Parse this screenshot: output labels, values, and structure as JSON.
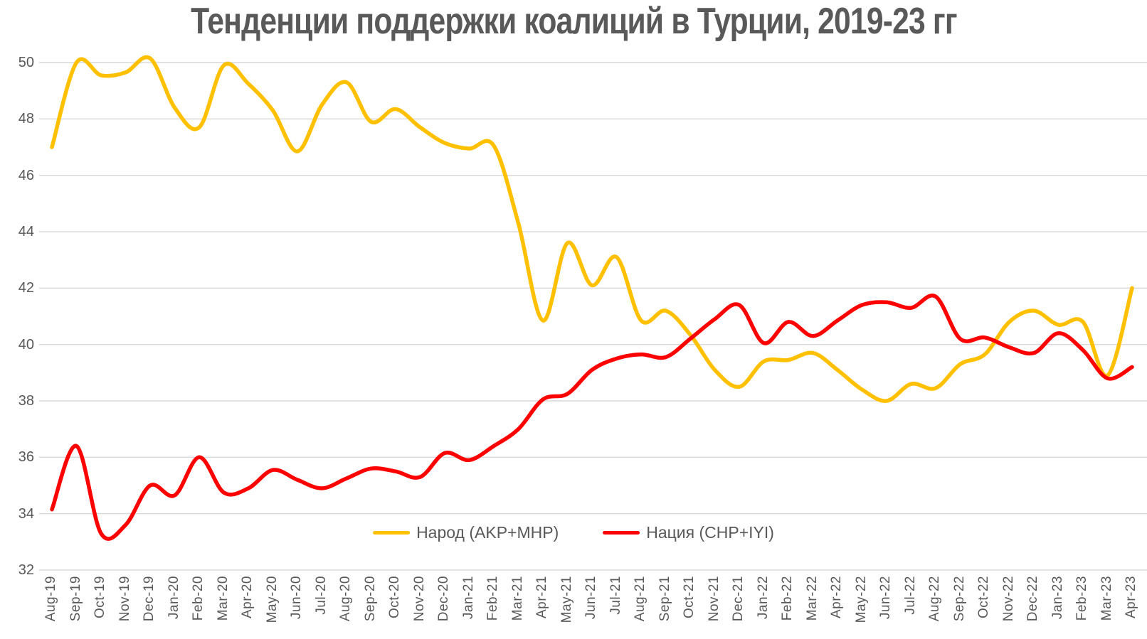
{
  "chart_data": {
    "type": "line",
    "title": "Тенденции поддержки коалиций в Турции, 2019-23 гг",
    "xlabel": "",
    "ylabel": "",
    "ylim": [
      32,
      50
    ],
    "y_tick_step": 2,
    "grid": "horizontal",
    "legend_position": "bottom-center",
    "smoothed_lines": true,
    "y_ticks": [
      "50",
      "48",
      "46",
      "44",
      "42",
      "40",
      "38",
      "36",
      "34",
      "32"
    ],
    "categories": [
      "Aug-19",
      "Sep-19",
      "Oct-19",
      "Nov-19",
      "Dec-19",
      "Jan-20",
      "Feb-20",
      "Mar-20",
      "Apr-20",
      "May-20",
      "Jun-20",
      "Jul-20",
      "Aug-20",
      "Sep-20",
      "Oct-20",
      "Nov-20",
      "Dec-20",
      "Jan-21",
      "Feb-21",
      "Mar-21",
      "Apr-21",
      "May-21",
      "Jun-21",
      "Jul-21",
      "Aug-21",
      "Sep-21",
      "Oct-21",
      "Nov-21",
      "Dec-21",
      "Jan-22",
      "Feb-22",
      "Mar-22",
      "Apr-22",
      "May-22",
      "Jun-22",
      "Jul-22",
      "Aug-22",
      "Sep-22",
      "Oct-22",
      "Nov-22",
      "Dec-22",
      "Jan-23",
      "Feb-23",
      "Mar-23",
      "Apr-23"
    ],
    "series": [
      {
        "name": "Народ (AKP+MHP)",
        "color": "#FFC000",
        "values": [
          47.0,
          50.0,
          49.55,
          49.65,
          50.15,
          48.4,
          47.7,
          49.9,
          49.25,
          48.3,
          46.85,
          48.5,
          49.3,
          47.9,
          48.35,
          47.7,
          47.15,
          46.95,
          47.05,
          44.3,
          40.85,
          43.6,
          42.1,
          43.1,
          40.85,
          41.2,
          40.35,
          39.1,
          38.5,
          39.4,
          39.45,
          39.7,
          39.1,
          38.4,
          38.0,
          38.6,
          38.45,
          39.3,
          39.65,
          40.8,
          41.2,
          40.7,
          40.8,
          38.9,
          42.0
        ]
      },
      {
        "name": "Нация (CHP+IYI)",
        "color": "#FF0000",
        "values": [
          34.15,
          36.4,
          33.3,
          33.6,
          35.0,
          34.65,
          36.0,
          34.75,
          34.9,
          35.55,
          35.2,
          34.9,
          35.25,
          35.6,
          35.5,
          35.3,
          36.15,
          35.9,
          36.4,
          37.0,
          38.05,
          38.25,
          39.1,
          39.5,
          39.65,
          39.55,
          40.2,
          40.9,
          41.4,
          40.05,
          40.8,
          40.3,
          40.85,
          41.4,
          41.5,
          41.3,
          41.7,
          40.2,
          40.25,
          39.9,
          39.7,
          40.4,
          39.8,
          38.8,
          39.2
        ]
      }
    ],
    "colors": {
      "grid": "#D9D9D9",
      "axis_text": "#595959",
      "title_text": "#595959",
      "background": "#FFFFFF"
    }
  }
}
